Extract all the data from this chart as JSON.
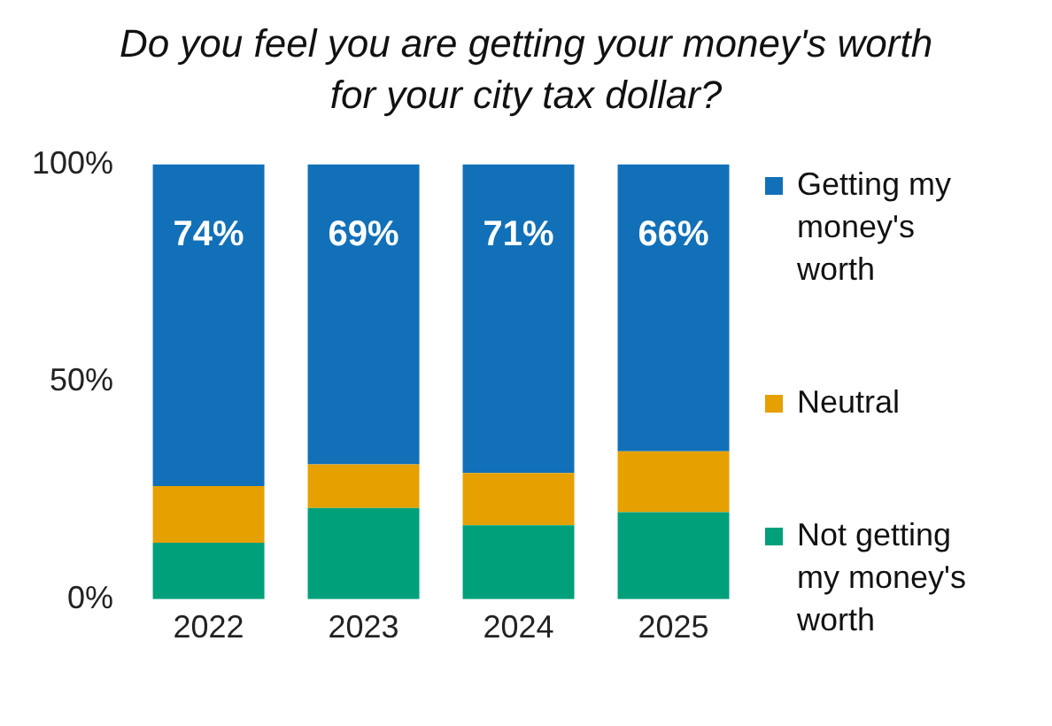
{
  "chart_data": {
    "type": "bar",
    "title": "Do you feel you are getting your money's worth for your city tax dollar?",
    "categories": [
      "2022",
      "2023",
      "2024",
      "2025"
    ],
    "stacked": true,
    "legend": "right",
    "grid": false,
    "series": [
      {
        "name": "Not getting my money's worth",
        "color": "#00a07a",
        "values": [
          13,
          21,
          17,
          20
        ]
      },
      {
        "name": "Neutral",
        "color": "#e6a000",
        "values": [
          13,
          10,
          12,
          14
        ]
      },
      {
        "name": "Getting my money's worth",
        "color": "#1170b8",
        "values": [
          74,
          69,
          71,
          66
        ],
        "value_labels": [
          "74%",
          "69%",
          "71%",
          "66%"
        ]
      }
    ],
    "ylim": [
      0,
      100
    ],
    "yticks": [
      {
        "value": 0,
        "label": "0%"
      },
      {
        "value": 50,
        "label": "50%"
      },
      {
        "value": 100,
        "label": "100%"
      }
    ]
  }
}
